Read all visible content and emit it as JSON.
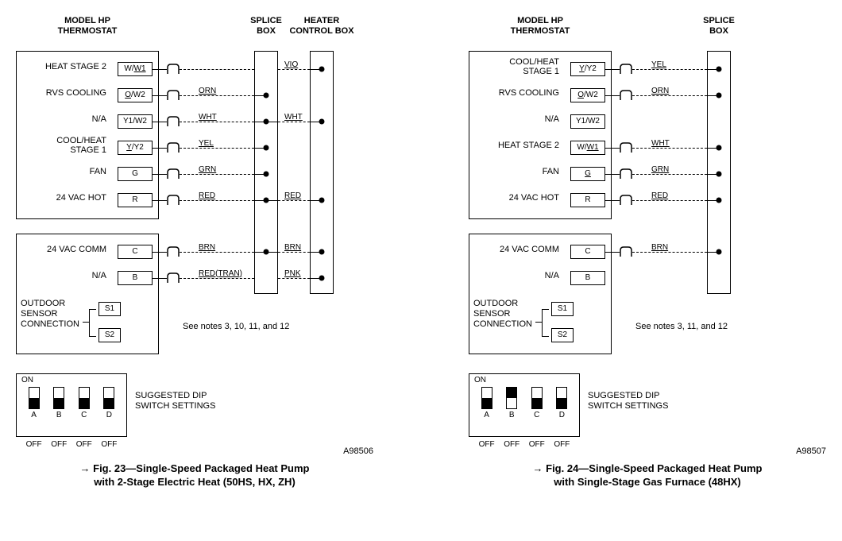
{
  "figures": [
    {
      "id": "fig23",
      "headers": {
        "thermostat": "MODEL HP\nTHERMOSTAT",
        "splice": "SPLICE\nBOX",
        "heater": "HEATER\nCONTROL BOX"
      },
      "block1_h": 215,
      "terminals_block1": [
        {
          "label": "HEAT STAGE 2",
          "pin": "W/W1",
          "ul": "W1",
          "wire": "",
          "splice": false,
          "heater": "VIO"
        },
        {
          "label": "RVS COOLING",
          "pin": "O/W2",
          "ul": "O",
          "wire": "ORN",
          "splice": true,
          "heater": ""
        },
        {
          "label": "N/A",
          "pin": "Y1/W2",
          "ul": "",
          "wire": "WHT",
          "splice": true,
          "heater": "WHT"
        },
        {
          "label": "COOL/HEAT\nSTAGE 1",
          "pin": "Y/Y2",
          "ul": "Y",
          "wire": "YEL",
          "splice": true,
          "heater": ""
        },
        {
          "label": "FAN",
          "pin": "G",
          "ul": "",
          "wire": "GRN",
          "splice": true,
          "heater": ""
        },
        {
          "label": "24 VAC HOT",
          "pin": "R",
          "ul": "",
          "wire": "RED",
          "splice": true,
          "heater": "RED"
        }
      ],
      "terminals_block2": [
        {
          "label": "24 VAC COMM",
          "pin": "C",
          "ul": "",
          "wire": "BRN",
          "splice": true,
          "heater": "BRN"
        },
        {
          "label": "N/A",
          "pin": "B",
          "ul": "",
          "wire": "RED(TRAN)",
          "splice": false,
          "heater": "PNK"
        }
      ],
      "sensor_pins": [
        "S1",
        "S2"
      ],
      "sensor_label": "OUTDOOR\nSENSOR\nCONNECTION",
      "notes": "See notes 3, 10, 11, and 12",
      "dip": {
        "letters": [
          "A",
          "B",
          "C",
          "D"
        ],
        "states": [
          "off",
          "off",
          "off",
          "off"
        ],
        "off": "OFF",
        "on": "ON"
      },
      "dip_label": "SUGGESTED DIP\nSWITCH SETTINGS",
      "part_no": "A98506",
      "caption_arrow": "→",
      "caption": "Fig. 23—Single-Speed Packaged Heat Pump\nwith 2-Stage Electric Heat (50HS, HX, ZH)",
      "has_heater_box": true
    },
    {
      "id": "fig24",
      "headers": {
        "thermostat": "MODEL HP\nTHERMOSTAT",
        "splice": "SPLICE\nBOX",
        "heater": ""
      },
      "block1_h": 215,
      "terminals_block1": [
        {
          "label": "COOL/HEAT\nSTAGE 1",
          "pin": "Y/Y2",
          "ul": "Y",
          "wire": "YEL",
          "splice": true
        },
        {
          "label": "RVS COOLING",
          "pin": "O/W2",
          "ul": "O",
          "wire": "ORN",
          "splice": true
        },
        {
          "label": "N/A",
          "pin": "Y1/W2",
          "ul": "",
          "wire": "",
          "splice": false
        },
        {
          "label": "HEAT STAGE 2",
          "pin": "W/W1",
          "ul": "W1",
          "wire": "WHT",
          "splice": true
        },
        {
          "label": "FAN",
          "pin": "G",
          "ul": "G",
          "wire": "GRN",
          "splice": true
        },
        {
          "label": "24 VAC HOT",
          "pin": "R",
          "ul": "",
          "wire": "RED",
          "splice": true
        }
      ],
      "terminals_block2": [
        {
          "label": "24 VAC COMM",
          "pin": "C",
          "ul": "",
          "wire": "BRN",
          "splice": true
        },
        {
          "label": "N/A",
          "pin": "B",
          "ul": "",
          "wire": "",
          "splice": false
        }
      ],
      "sensor_pins": [
        "S1",
        "S2"
      ],
      "sensor_label": "OUTDOOR\nSENSOR\nCONNECTION",
      "notes": "See notes 3, 11, and 12",
      "dip": {
        "letters": [
          "A",
          "B",
          "C",
          "D"
        ],
        "states": [
          "off",
          "on",
          "off",
          "off"
        ],
        "off": "OFF",
        "on": "ON"
      },
      "dip_label": "SUGGESTED DIP\nSWITCH SETTINGS",
      "part_no": "A98507",
      "caption_arrow": "→",
      "caption": "Fig. 24—Single-Speed Packaged Heat Pump\nwith Single-Stage Gas Furnace (48HX)",
      "has_heater_box": false
    }
  ]
}
